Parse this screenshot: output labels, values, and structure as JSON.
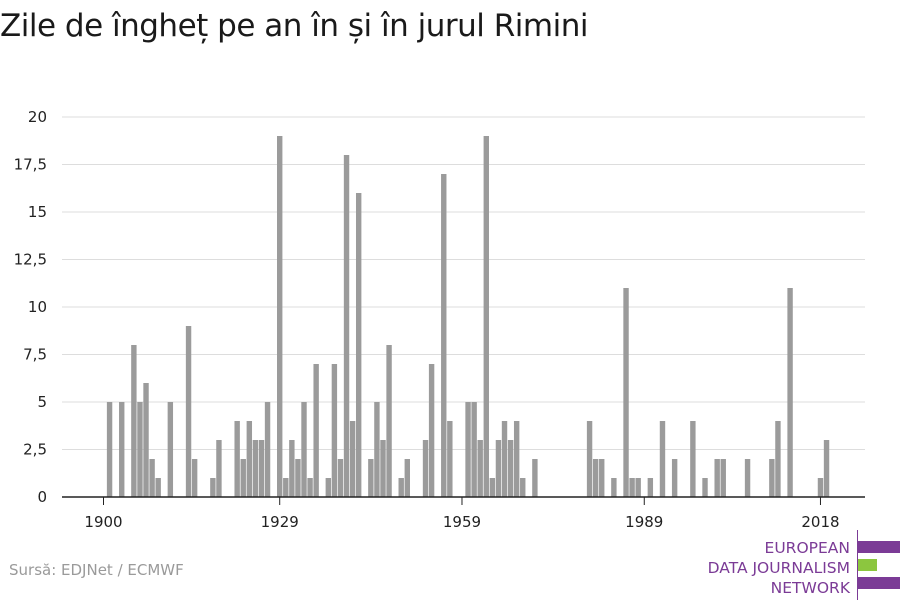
{
  "title": "Zile de îngheț pe an în și în jurul Rimini",
  "source": "Sursă: EDJNet / ECMWF",
  "logo": {
    "lines": [
      "EUROPEAN",
      "DATA JOURNALISM",
      "NETWORK"
    ],
    "colors": {
      "purple": "#7b3b96",
      "green": "#8cc63f"
    }
  },
  "colors": {
    "bar": "#9b9b9b",
    "grid": "#dddddd",
    "axis": "#222222"
  },
  "chart_data": {
    "type": "bar",
    "title": "Zile de îngheț pe an în și în jurul Rimini",
    "xlabel": "",
    "ylabel": "",
    "xlim": [
      1900,
      2020
    ],
    "ylim": [
      0,
      20
    ],
    "yticks": [
      0,
      2.5,
      5,
      7.5,
      10,
      12.5,
      15,
      17.5,
      20
    ],
    "ytick_labels": [
      "0",
      "2,5",
      "5",
      "7,5",
      "10",
      "12,5",
      "15",
      "17,5",
      "20"
    ],
    "xticks": [
      1900,
      1929,
      1959,
      1989,
      2018
    ],
    "xtick_labels": [
      "1900",
      "1929",
      "1959",
      "1989",
      "2018"
    ],
    "grid": true,
    "x": [
      1901,
      1902,
      1903,
      1904,
      1905,
      1906,
      1907,
      1908,
      1909,
      1910,
      1911,
      1912,
      1913,
      1914,
      1915,
      1916,
      1917,
      1918,
      1919,
      1920,
      1921,
      1922,
      1923,
      1924,
      1925,
      1926,
      1927,
      1928,
      1929,
      1930,
      1931,
      1932,
      1933,
      1934,
      1935,
      1936,
      1937,
      1938,
      1939,
      1940,
      1941,
      1942,
      1943,
      1944,
      1945,
      1946,
      1947,
      1948,
      1949,
      1950,
      1951,
      1952,
      1953,
      1954,
      1955,
      1956,
      1957,
      1958,
      1959,
      1960,
      1961,
      1962,
      1963,
      1964,
      1965,
      1966,
      1967,
      1968,
      1969,
      1970,
      1971,
      1972,
      1973,
      1974,
      1975,
      1976,
      1977,
      1978,
      1979,
      1980,
      1981,
      1982,
      1983,
      1984,
      1985,
      1986,
      1987,
      1988,
      1989,
      1990,
      1991,
      1992,
      1993,
      1994,
      1995,
      1996,
      1997,
      1998,
      1999,
      2000,
      2001,
      2002,
      2003,
      2004,
      2005,
      2006,
      2007,
      2008,
      2009,
      2010,
      2011,
      2012,
      2013,
      2014,
      2015,
      2016,
      2017,
      2018,
      2019
    ],
    "values": [
      5,
      0,
      5,
      0,
      8,
      5,
      6,
      2,
      1,
      0,
      5,
      0,
      0,
      9,
      2,
      0,
      0,
      1,
      3,
      0,
      0,
      4,
      2,
      4,
      3,
      3,
      5,
      0,
      19,
      1,
      3,
      2,
      5,
      1,
      7,
      0,
      1,
      7,
      2,
      18,
      4,
      16,
      0,
      2,
      5,
      3,
      8,
      0,
      1,
      2,
      0,
      0,
      3,
      7,
      0,
      17,
      4,
      0,
      0,
      5,
      5,
      3,
      19,
      1,
      3,
      4,
      3,
      4,
      1,
      0,
      2,
      0,
      0,
      0,
      0,
      0,
      0,
      0,
      0,
      4,
      2,
      2,
      0,
      1,
      0,
      11,
      1,
      1,
      0,
      1,
      0,
      4,
      0,
      2,
      0,
      0,
      4,
      0,
      1,
      0,
      2,
      2,
      0,
      0,
      0,
      2,
      0,
      0,
      0,
      2,
      4,
      0,
      11,
      0,
      0,
      0,
      0,
      1,
      3
    ]
  }
}
